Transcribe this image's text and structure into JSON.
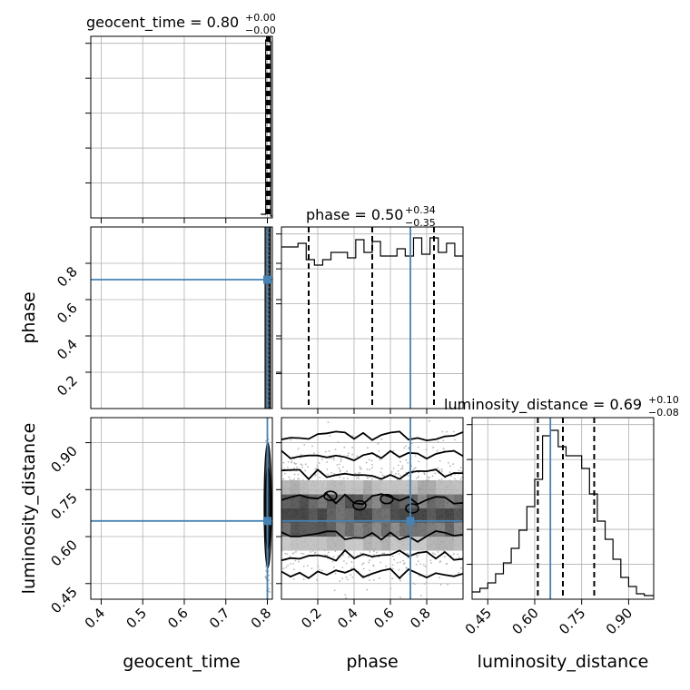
{
  "chart_data": {
    "type": "corner",
    "parameters": [
      "geocent_time",
      "phase",
      "luminosity_distance"
    ],
    "truths": {
      "geocent_time": 0.8,
      "phase": 0.71,
      "luminosity_distance": 0.65
    },
    "titles": {
      "geocent_time": {
        "label": "geocent_time = 0.80",
        "plus": "+0.00",
        "minus": "−0.00"
      },
      "phase": {
        "label": "phase = 0.50",
        "plus": "+0.34",
        "minus": "−0.35"
      },
      "luminosity_distance": {
        "label": "luminosity_distance = 0.69",
        "plus": "+0.10",
        "minus": "−0.08"
      }
    },
    "axis_labels": {
      "x": [
        "geocent_time",
        "phase",
        "luminosity_distance"
      ],
      "y": [
        "phase",
        "luminosity_distance"
      ]
    },
    "ranges": {
      "geocent_time": [
        0.375,
        0.812
      ],
      "phase": [
        0.0,
        1.0
      ],
      "luminosity_distance": [
        0.4,
        0.98
      ]
    },
    "ticks": {
      "geocent_time": [
        "0.4",
        "0.5",
        "0.6",
        "0.7",
        "0.8"
      ],
      "phase": [
        "0.2",
        "0.4",
        "0.6",
        "0.8"
      ],
      "luminosity_distance": [
        "0.45",
        "0.60",
        "0.75",
        "0.90"
      ]
    },
    "grid": true,
    "hist_geocent_time": {
      "x": [
        0.784,
        0.796,
        0.804,
        0.808
      ],
      "counts": [
        0.02,
        0.98,
        0.97,
        0.01
      ]
    },
    "hist_geocent_quantiles": [
      0.799,
      0.802,
      0.806
    ],
    "hist_phase": {
      "counts": [
        0.89,
        0.89,
        0.91,
        0.82,
        0.79,
        0.82,
        0.86,
        0.86,
        0.83,
        0.93,
        0.86,
        0.92,
        0.84,
        0.84,
        0.88,
        0.84,
        0.94,
        0.85,
        0.94,
        0.86,
        0.91,
        0.84
      ],
      "quantiles": [
        0.15,
        0.5,
        0.84
      ]
    },
    "hist_luminosity_distance": {
      "x": [
        0.4,
        0.425,
        0.45,
        0.475,
        0.5,
        0.525,
        0.55,
        0.575,
        0.6,
        0.625,
        0.65,
        0.675,
        0.7,
        0.725,
        0.75,
        0.775,
        0.8,
        0.825,
        0.85,
        0.875,
        0.9,
        0.925,
        0.95
      ],
      "counts": [
        0.04,
        0.06,
        0.09,
        0.14,
        0.2,
        0.28,
        0.38,
        0.51,
        0.66,
        0.9,
        0.93,
        0.84,
        0.79,
        0.79,
        0.72,
        0.58,
        0.43,
        0.33,
        0.22,
        0.12,
        0.07,
        0.03,
        0.02
      ],
      "quantiles": [
        0.61,
        0.69,
        0.79
      ]
    }
  }
}
